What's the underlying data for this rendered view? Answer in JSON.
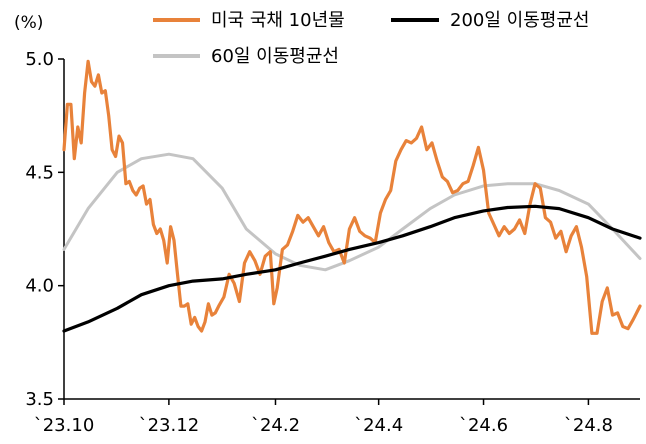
{
  "chart_data": {
    "type": "line",
    "ylabel": "(%)",
    "ylim": [
      3.5,
      5.0
    ],
    "yticks": [
      3.5,
      4.0,
      4.5,
      5.0
    ],
    "ytick_labels": [
      "3.5",
      "4.0",
      "4.5",
      "5.0"
    ],
    "xlim": [
      "2023-10-01",
      "2024-08-31"
    ],
    "xticks": [
      "2023-10-01",
      "2023-12-01",
      "2024-02-01",
      "2024-04-01",
      "2024-06-01",
      "2024-08-01"
    ],
    "xtick_labels": [
      "`23.10",
      "`23.12",
      "`24.2",
      "`24.4",
      "`24.6",
      "`24.8"
    ],
    "grid": false,
    "legend_position": "top",
    "series": [
      {
        "name": "미국 국채 10년물",
        "color": "#E8823A",
        "x": [
          "2023-10-01",
          "2023-10-03",
          "2023-10-05",
          "2023-10-07",
          "2023-10-09",
          "2023-10-11",
          "2023-10-13",
          "2023-10-15",
          "2023-10-17",
          "2023-10-19",
          "2023-10-21",
          "2023-10-23",
          "2023-10-25",
          "2023-10-27",
          "2023-10-29",
          "2023-10-31",
          "2023-11-02",
          "2023-11-04",
          "2023-11-06",
          "2023-11-08",
          "2023-11-10",
          "2023-11-12",
          "2023-11-14",
          "2023-11-16",
          "2023-11-18",
          "2023-11-20",
          "2023-11-22",
          "2023-11-24",
          "2023-11-26",
          "2023-11-28",
          "2023-11-30",
          "2023-12-02",
          "2023-12-04",
          "2023-12-06",
          "2023-12-08",
          "2023-12-10",
          "2023-12-12",
          "2023-12-14",
          "2023-12-16",
          "2023-12-18",
          "2023-12-20",
          "2023-12-22",
          "2023-12-24",
          "2023-12-26",
          "2023-12-28",
          "2023-12-30",
          "2024-01-02",
          "2024-01-05",
          "2024-01-08",
          "2024-01-11",
          "2024-01-14",
          "2024-01-17",
          "2024-01-20",
          "2024-01-23",
          "2024-01-26",
          "2024-01-29",
          "2024-01-31",
          "2024-02-02",
          "2024-02-05",
          "2024-02-08",
          "2024-02-11",
          "2024-02-14",
          "2024-02-17",
          "2024-02-20",
          "2024-02-23",
          "2024-02-26",
          "2024-02-29",
          "2024-03-03",
          "2024-03-06",
          "2024-03-09",
          "2024-03-12",
          "2024-03-15",
          "2024-03-18",
          "2024-03-21",
          "2024-03-24",
          "2024-03-27",
          "2024-03-30",
          "2024-04-02",
          "2024-04-05",
          "2024-04-08",
          "2024-04-11",
          "2024-04-14",
          "2024-04-17",
          "2024-04-20",
          "2024-04-23",
          "2024-04-26",
          "2024-04-29",
          "2024-05-02",
          "2024-05-05",
          "2024-05-08",
          "2024-05-11",
          "2024-05-14",
          "2024-05-17",
          "2024-05-20",
          "2024-05-23",
          "2024-05-26",
          "2024-05-29",
          "2024-06-01",
          "2024-06-04",
          "2024-06-07",
          "2024-06-10",
          "2024-06-13",
          "2024-06-16",
          "2024-06-19",
          "2024-06-22",
          "2024-06-25",
          "2024-06-28",
          "2024-07-01",
          "2024-07-04",
          "2024-07-07",
          "2024-07-10",
          "2024-07-13",
          "2024-07-16",
          "2024-07-19",
          "2024-07-22",
          "2024-07-25",
          "2024-07-28",
          "2024-07-31",
          "2024-08-03",
          "2024-08-06",
          "2024-08-09",
          "2024-08-12",
          "2024-08-15",
          "2024-08-18",
          "2024-08-21",
          "2024-08-24",
          "2024-08-27",
          "2024-08-31"
        ],
        "values": [
          4.6,
          4.8,
          4.8,
          4.56,
          4.7,
          4.63,
          4.85,
          4.99,
          4.9,
          4.88,
          4.93,
          4.85,
          4.86,
          4.75,
          4.6,
          4.57,
          4.66,
          4.63,
          4.45,
          4.46,
          4.42,
          4.4,
          4.43,
          4.44,
          4.36,
          4.38,
          4.27,
          4.23,
          4.25,
          4.2,
          4.1,
          4.26,
          4.2,
          4.05,
          3.91,
          3.91,
          3.92,
          3.83,
          3.86,
          3.82,
          3.8,
          3.84,
          3.92,
          3.87,
          3.88,
          3.91,
          3.95,
          4.05,
          4.01,
          3.93,
          4.1,
          4.15,
          4.11,
          4.05,
          4.13,
          4.15,
          3.92,
          3.99,
          4.16,
          4.18,
          4.24,
          4.31,
          4.28,
          4.3,
          4.26,
          4.22,
          4.26,
          4.19,
          4.15,
          4.16,
          4.1,
          4.25,
          4.3,
          4.24,
          4.22,
          4.21,
          4.19,
          4.32,
          4.38,
          4.42,
          4.55,
          4.6,
          4.64,
          4.63,
          4.65,
          4.7,
          4.6,
          4.63,
          4.55,
          4.48,
          4.46,
          4.41,
          4.42,
          4.45,
          4.46,
          4.53,
          4.61,
          4.51,
          4.32,
          4.27,
          4.22,
          4.26,
          4.23,
          4.25,
          4.29,
          4.23,
          4.36,
          4.45,
          4.43,
          4.3,
          4.28,
          4.21,
          4.24,
          4.15,
          4.22,
          4.26,
          4.17,
          4.04,
          3.79,
          3.79,
          3.93,
          3.99,
          3.87,
          3.88,
          3.82,
          3.81,
          3.85,
          3.91
        ]
      },
      {
        "name": "200일 이동평균선",
        "color": "#000000",
        "x": [
          "2023-10-01",
          "2023-10-15",
          "2023-11-01",
          "2023-11-15",
          "2023-12-01",
          "2023-12-15",
          "2024-01-01",
          "2024-01-15",
          "2024-02-01",
          "2024-02-15",
          "2024-03-01",
          "2024-03-15",
          "2024-04-01",
          "2024-04-15",
          "2024-05-01",
          "2024-05-15",
          "2024-06-01",
          "2024-06-15",
          "2024-07-01",
          "2024-07-15",
          "2024-08-01",
          "2024-08-15",
          "2024-08-31"
        ],
        "values": [
          3.8,
          3.84,
          3.9,
          3.96,
          4.0,
          4.02,
          4.03,
          4.05,
          4.07,
          4.1,
          4.13,
          4.16,
          4.19,
          4.22,
          4.26,
          4.3,
          4.33,
          4.345,
          4.35,
          4.34,
          4.3,
          4.25,
          4.21
        ]
      },
      {
        "name": "60일 이동평균선",
        "color": "#C4C4C4",
        "x": [
          "2023-10-01",
          "2023-10-15",
          "2023-11-01",
          "2023-11-15",
          "2023-12-01",
          "2023-12-15",
          "2024-01-01",
          "2024-01-15",
          "2024-02-01",
          "2024-02-15",
          "2024-03-01",
          "2024-03-15",
          "2024-04-01",
          "2024-04-15",
          "2024-05-01",
          "2024-05-15",
          "2024-06-01",
          "2024-06-15",
          "2024-07-01",
          "2024-07-15",
          "2024-08-01",
          "2024-08-15",
          "2024-08-31"
        ],
        "values": [
          4.16,
          4.34,
          4.5,
          4.56,
          4.58,
          4.56,
          4.43,
          4.25,
          4.14,
          4.09,
          4.07,
          4.11,
          4.17,
          4.25,
          4.34,
          4.4,
          4.44,
          4.45,
          4.45,
          4.42,
          4.36,
          4.25,
          4.12
        ]
      }
    ]
  }
}
